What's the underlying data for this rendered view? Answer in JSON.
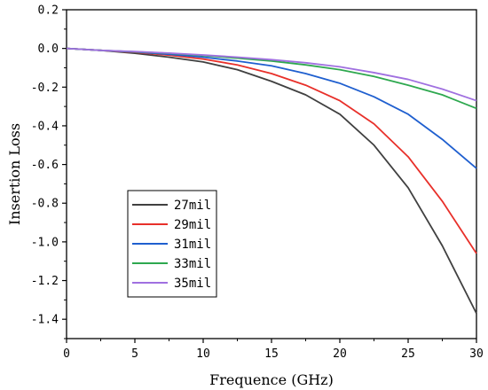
{
  "chart_data": {
    "type": "line",
    "title": "",
    "xlabel": "Frequence (GHz)",
    "ylabel": "Insertion Loss",
    "xlim": [
      0,
      30
    ],
    "ylim": [
      -1.5,
      0.2
    ],
    "xticks": [
      0,
      5,
      10,
      15,
      20,
      25,
      30
    ],
    "xtick_labels": [
      "0",
      "5",
      "10",
      "15",
      "20",
      "25",
      "30"
    ],
    "yticks": [
      0.2,
      0.0,
      -0.2,
      -0.4,
      -0.6,
      -0.8,
      -1.0,
      -1.2,
      -1.4
    ],
    "ytick_labels": [
      "0.2",
      "0.0",
      "-0.2",
      "-0.4",
      "-0.6",
      "-0.8",
      "-1.0",
      "-1.2",
      "-1.4"
    ],
    "grid": false,
    "legend_position": "lower-left",
    "x": [
      0,
      2.5,
      5,
      7.5,
      10,
      12.5,
      15,
      17.5,
      20,
      22.5,
      25,
      27.5,
      30
    ],
    "series": [
      {
        "name": "27mil",
        "color": "#404040",
        "values": [
          0.0,
          -0.01,
          -0.025,
          -0.045,
          -0.07,
          -0.11,
          -0.17,
          -0.24,
          -0.34,
          -0.5,
          -0.72,
          -1.02,
          -1.37
        ]
      },
      {
        "name": "29mil",
        "color": "#e8302a",
        "values": [
          0.0,
          -0.01,
          -0.02,
          -0.035,
          -0.055,
          -0.085,
          -0.13,
          -0.19,
          -0.27,
          -0.39,
          -0.56,
          -0.79,
          -1.06
        ]
      },
      {
        "name": "31mil",
        "color": "#1f5fcf",
        "values": [
          0.0,
          -0.01,
          -0.018,
          -0.03,
          -0.045,
          -0.065,
          -0.09,
          -0.13,
          -0.18,
          -0.25,
          -0.34,
          -0.47,
          -0.62
        ]
      },
      {
        "name": "33mil",
        "color": "#2ea84f",
        "values": [
          0.0,
          -0.01,
          -0.017,
          -0.025,
          -0.037,
          -0.05,
          -0.065,
          -0.085,
          -0.11,
          -0.145,
          -0.19,
          -0.24,
          -0.31
        ]
      },
      {
        "name": "35mil",
        "color": "#a070e0",
        "values": [
          0.0,
          -0.01,
          -0.016,
          -0.024,
          -0.034,
          -0.045,
          -0.058,
          -0.074,
          -0.095,
          -0.125,
          -0.16,
          -0.21,
          -0.27
        ]
      }
    ]
  }
}
